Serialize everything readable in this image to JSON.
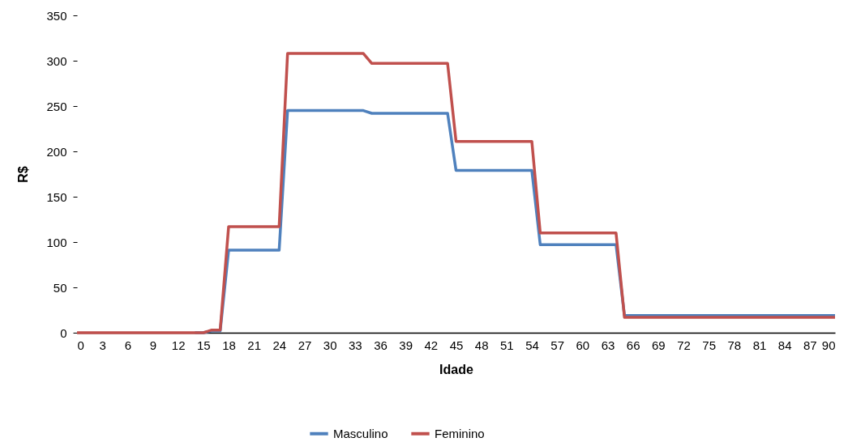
{
  "chart_data": {
    "type": "line",
    "xlabel": "Idade",
    "ylabel": "R$",
    "x": [
      0,
      1,
      2,
      3,
      4,
      5,
      6,
      7,
      8,
      9,
      10,
      11,
      12,
      13,
      14,
      15,
      16,
      17,
      18,
      19,
      20,
      21,
      22,
      23,
      24,
      25,
      26,
      27,
      28,
      29,
      30,
      31,
      32,
      33,
      34,
      35,
      36,
      37,
      38,
      39,
      40,
      41,
      42,
      43,
      44,
      45,
      46,
      47,
      48,
      49,
      50,
      51,
      52,
      53,
      54,
      55,
      56,
      57,
      58,
      59,
      60,
      61,
      62,
      63,
      64,
      65,
      66,
      67,
      68,
      69,
      70,
      71,
      72,
      73,
      74,
      75,
      76,
      77,
      78,
      79,
      80,
      81,
      82,
      83,
      84,
      85,
      86,
      87,
      88,
      89,
      90
    ],
    "series": [
      {
        "name": "Masculino",
        "color": "#4f81bd",
        "values": [
          null,
          null,
          null,
          null,
          null,
          null,
          null,
          null,
          null,
          null,
          null,
          null,
          null,
          null,
          0,
          0,
          2,
          2,
          91,
          91,
          91,
          91,
          91,
          91,
          91,
          245,
          245,
          245,
          245,
          245,
          245,
          245,
          245,
          245,
          245,
          242,
          242,
          242,
          242,
          242,
          242,
          242,
          242,
          242,
          242,
          179,
          179,
          179,
          179,
          179,
          179,
          179,
          179,
          179,
          179,
          97,
          97,
          97,
          97,
          97,
          97,
          97,
          97,
          97,
          97,
          19,
          19,
          19,
          19,
          19,
          19,
          19,
          19,
          19,
          19,
          19,
          19,
          19,
          19,
          19,
          19,
          19,
          19,
          19,
          19,
          19,
          19,
          19,
          19,
          19,
          19
        ]
      },
      {
        "name": "Feminino",
        "color": "#c0504d",
        "values": [
          0,
          0,
          0,
          0,
          0,
          0,
          0,
          0,
          0,
          0,
          0,
          0,
          0,
          0,
          0,
          0,
          3,
          3,
          117,
          117,
          117,
          117,
          117,
          117,
          117,
          308,
          308,
          308,
          308,
          308,
          308,
          308,
          308,
          308,
          308,
          297,
          297,
          297,
          297,
          297,
          297,
          297,
          297,
          297,
          297,
          211,
          211,
          211,
          211,
          211,
          211,
          211,
          211,
          211,
          211,
          110,
          110,
          110,
          110,
          110,
          110,
          110,
          110,
          110,
          110,
          17,
          17,
          17,
          17,
          17,
          17,
          17,
          17,
          17,
          17,
          17,
          17,
          17,
          17,
          17,
          17,
          17,
          17,
          17,
          17,
          17,
          17,
          17,
          17,
          17,
          17
        ]
      }
    ],
    "xlim": [
      0,
      90
    ],
    "xticks": [
      0,
      3,
      6,
      9,
      12,
      15,
      18,
      21,
      24,
      27,
      30,
      33,
      36,
      39,
      42,
      45,
      48,
      51,
      54,
      57,
      60,
      63,
      66,
      69,
      72,
      75,
      78,
      81,
      84,
      87,
      90
    ],
    "ylim": [
      0,
      350
    ],
    "yticks": [
      0,
      50,
      100,
      150,
      200,
      250,
      300,
      350
    ],
    "grid": false,
    "legend": "bottom",
    "marker": "none",
    "line_style": "solid"
  }
}
